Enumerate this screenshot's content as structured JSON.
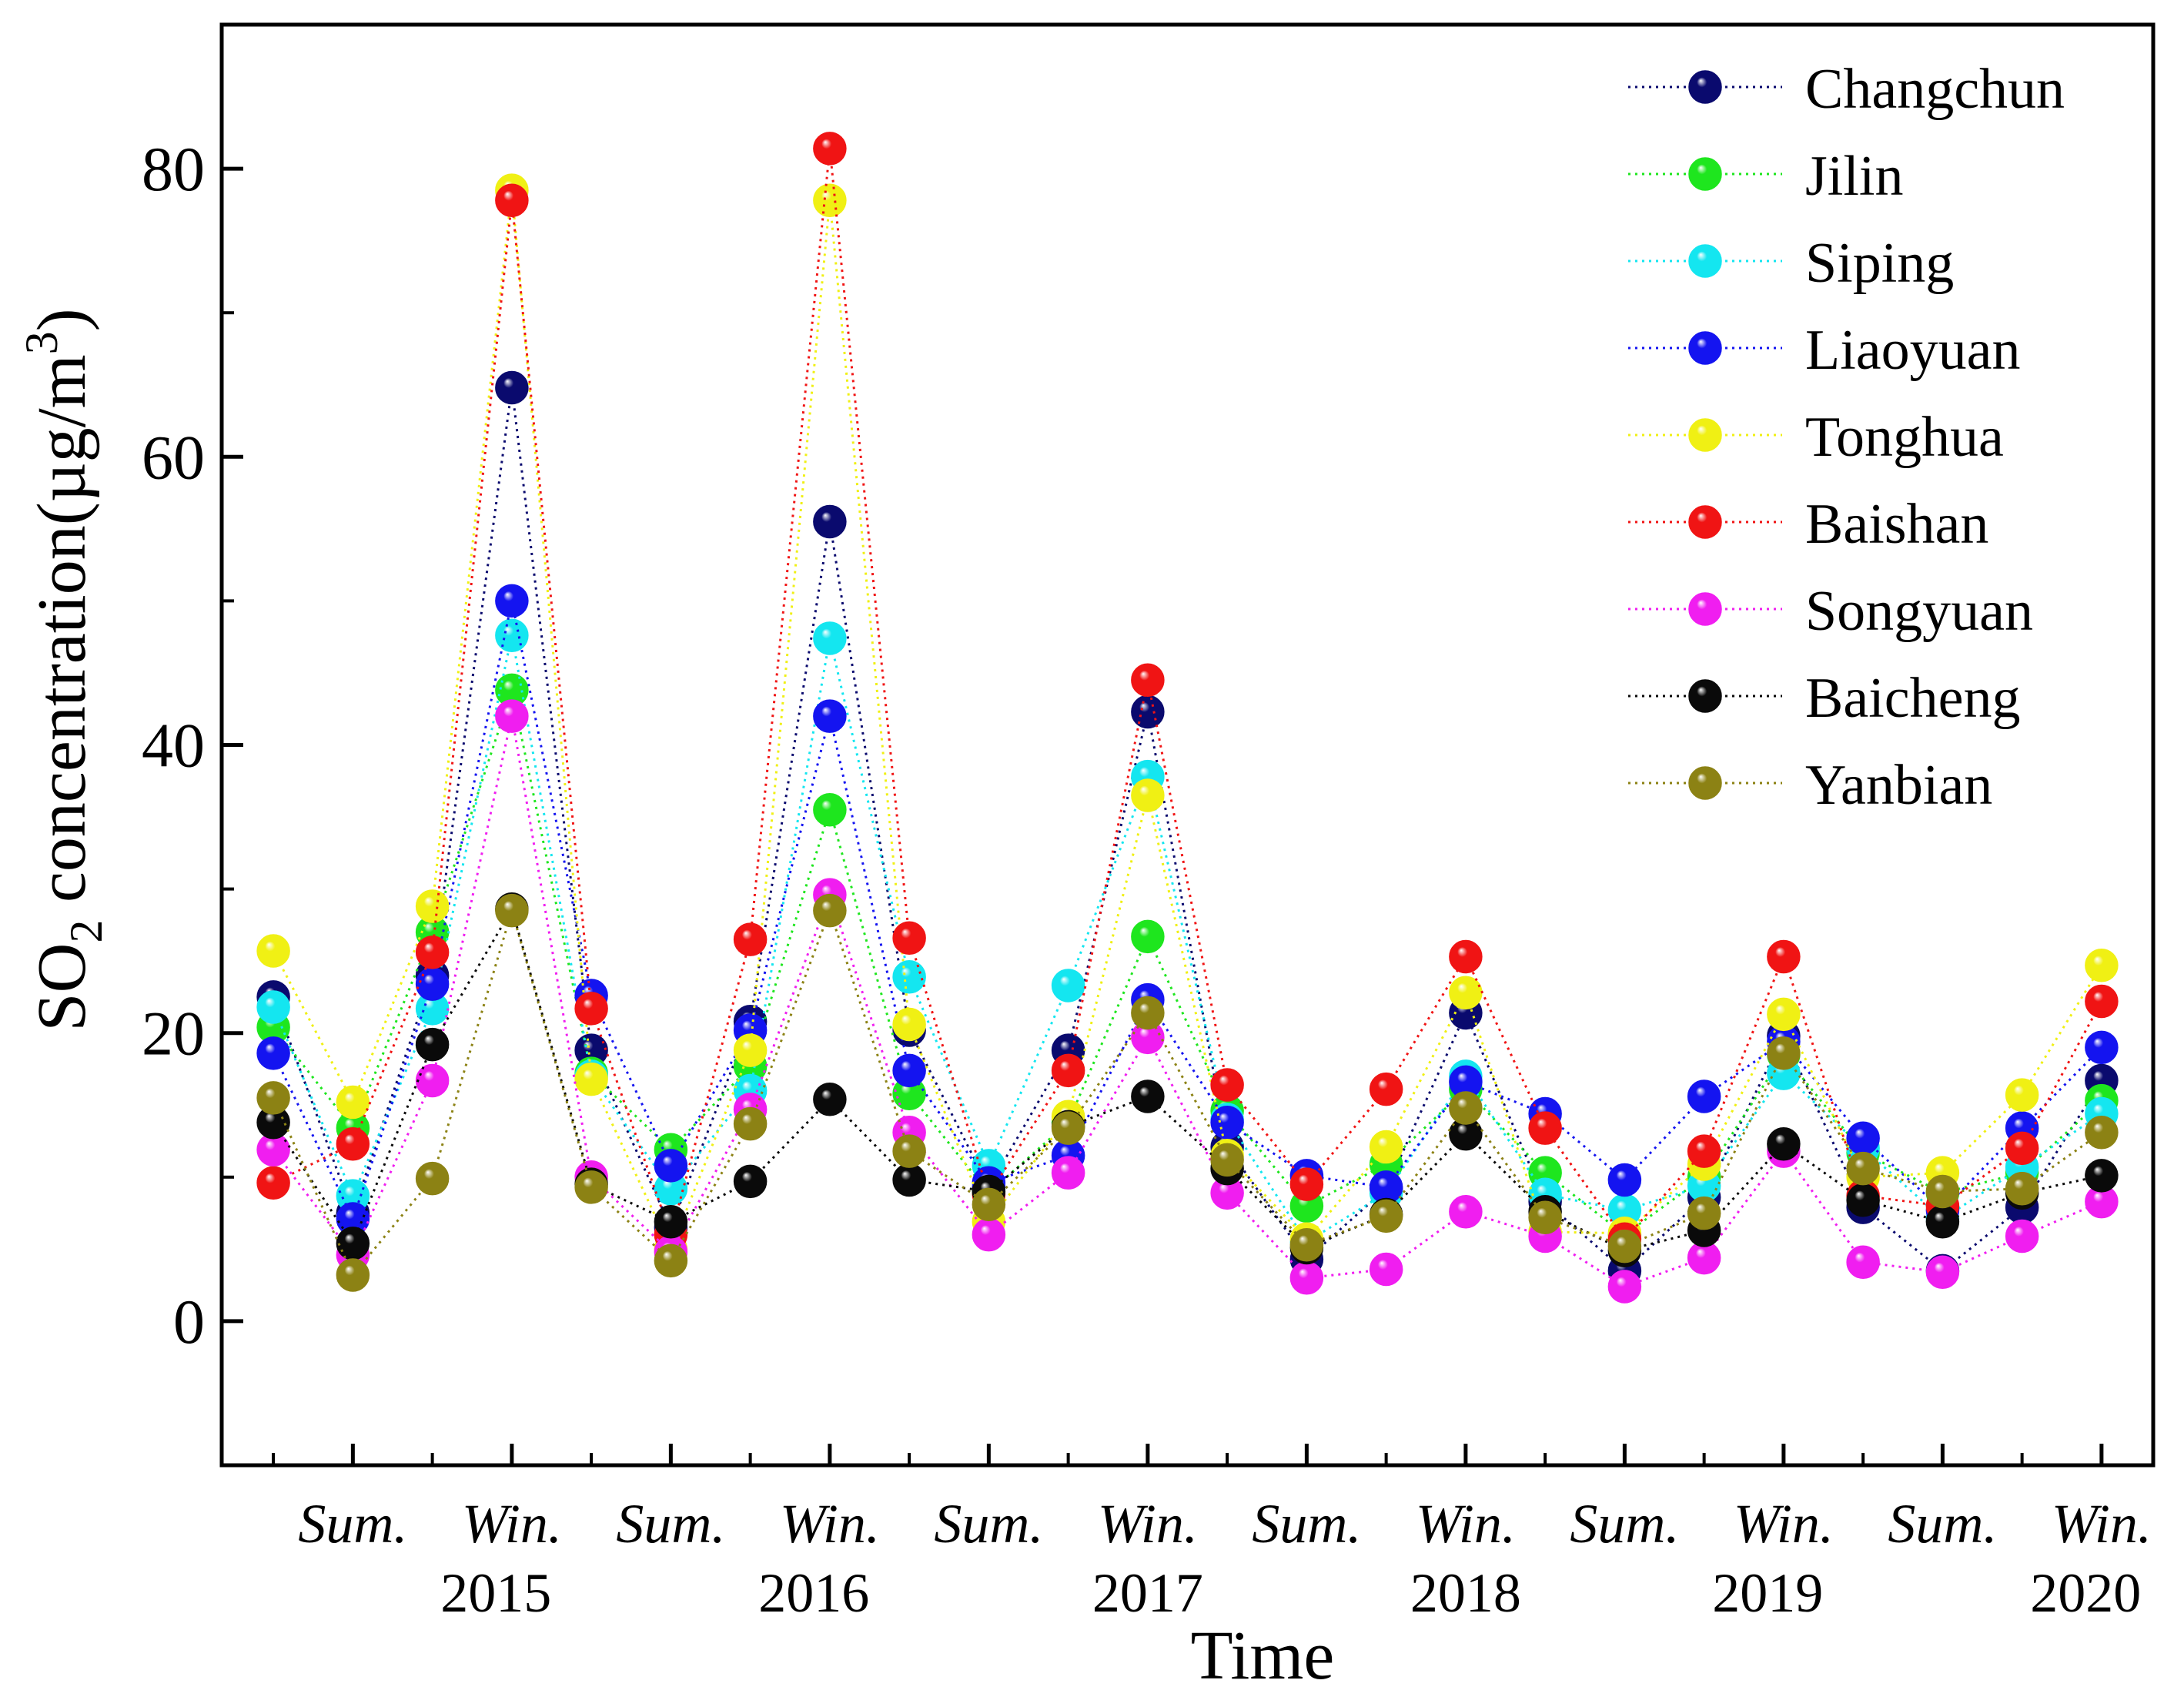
{
  "chart_data": {
    "type": "line",
    "title": "",
    "xlabel": "Time",
    "ylabel_parts": [
      "SO",
      "2",
      " concentration(µg/m",
      "3",
      ")"
    ],
    "ylim": [
      -10,
      90
    ],
    "yticks": [
      0,
      20,
      40,
      60,
      80
    ],
    "grid": false,
    "legend_position": "top-right",
    "x": [
      1,
      2,
      3,
      4,
      5,
      6,
      7,
      8,
      9,
      10,
      11,
      12,
      13,
      14,
      15,
      16,
      17,
      18,
      19,
      20,
      21,
      22,
      23,
      24
    ],
    "xlim": [
      0.35,
      24.65
    ],
    "season_labels": [
      {
        "x": 2,
        "text": "Sum."
      },
      {
        "x": 4,
        "text": "Win."
      },
      {
        "x": 6,
        "text": "Sum."
      },
      {
        "x": 8,
        "text": "Win."
      },
      {
        "x": 10,
        "text": "Sum."
      },
      {
        "x": 12,
        "text": "Win."
      },
      {
        "x": 14,
        "text": "Sum."
      },
      {
        "x": 16,
        "text": "Win."
      },
      {
        "x": 18,
        "text": "Sum."
      },
      {
        "x": 20,
        "text": "Win."
      },
      {
        "x": 22,
        "text": "Sum."
      },
      {
        "x": 24,
        "text": "Win."
      }
    ],
    "year_labels": [
      {
        "x": 3.8,
        "text": "2015"
      },
      {
        "x": 7.8,
        "text": "2016"
      },
      {
        "x": 12,
        "text": "2017"
      },
      {
        "x": 16,
        "text": "2018"
      },
      {
        "x": 19.8,
        "text": "2019"
      },
      {
        "x": 23.8,
        "text": "2020"
      }
    ],
    "series": [
      {
        "name": "Changchun",
        "color": "#0a0a6e",
        "values": [
          22.5,
          7.5,
          24.0,
          64.8,
          18.8,
          6.5,
          20.8,
          55.5,
          20.2,
          9.3,
          18.8,
          42.3,
          12.1,
          4.3,
          9.2,
          21.4,
          8.3,
          3.5,
          8.6,
          19.8,
          7.9,
          3.5,
          7.9,
          16.7
        ]
      },
      {
        "name": "Jilin",
        "color": "#1ee61e",
        "values": [
          20.4,
          13.4,
          27.0,
          43.8,
          17.2,
          11.9,
          17.7,
          35.5,
          15.8,
          8.9,
          13.8,
          26.7,
          14.6,
          8.0,
          10.9,
          16.1,
          10.3,
          6.0,
          10.0,
          18.5,
          11.7,
          8.9,
          10.3,
          15.3
        ]
      },
      {
        "name": "Siping",
        "color": "#14e6f0",
        "values": [
          21.8,
          8.7,
          21.7,
          47.6,
          17.0,
          9.2,
          16.0,
          47.4,
          23.9,
          10.8,
          23.3,
          37.8,
          14.0,
          5.5,
          8.9,
          17.0,
          8.8,
          7.7,
          9.4,
          17.2,
          12.0,
          7.1,
          10.7,
          14.4
        ]
      },
      {
        "name": "Liaoyuan",
        "color": "#1414f0",
        "values": [
          18.6,
          7.1,
          23.4,
          50.0,
          22.6,
          10.8,
          20.2,
          42.0,
          17.4,
          9.6,
          11.5,
          22.3,
          13.8,
          10.1,
          9.3,
          16.6,
          14.4,
          9.8,
          15.6,
          19.4,
          12.7,
          7.7,
          13.4,
          19.0
        ]
      },
      {
        "name": "Tonghua",
        "color": "#f0f014",
        "values": [
          25.7,
          15.2,
          28.8,
          78.5,
          16.8,
          5.0,
          18.8,
          77.8,
          20.6,
          6.9,
          14.2,
          36.5,
          11.5,
          5.7,
          12.1,
          22.8,
          6.2,
          6.1,
          10.9,
          21.3,
          10.0,
          10.3,
          15.7,
          24.7
        ]
      },
      {
        "name": "Baishan",
        "color": "#f01414",
        "values": [
          9.6,
          12.3,
          25.6,
          77.8,
          21.7,
          6.0,
          26.5,
          81.4,
          26.6,
          8.8,
          17.4,
          44.5,
          16.4,
          9.5,
          16.1,
          25.3,
          13.4,
          5.7,
          11.8,
          25.3,
          8.7,
          8.0,
          12.0,
          22.2
        ]
      },
      {
        "name": "Songyuan",
        "color": "#f01ef0",
        "values": [
          11.9,
          4.6,
          16.7,
          42.0,
          10.0,
          4.8,
          14.7,
          29.6,
          13.1,
          6.0,
          10.3,
          19.7,
          8.9,
          3.0,
          3.6,
          7.6,
          5.9,
          2.4,
          4.4,
          11.8,
          4.1,
          3.4,
          5.9,
          8.3
        ]
      },
      {
        "name": "Baicheng",
        "color": "#0a0a0a",
        "values": [
          13.8,
          5.4,
          19.2,
          28.6,
          9.5,
          6.9,
          9.7,
          15.4,
          9.8,
          9.0,
          13.5,
          15.6,
          10.6,
          5.1,
          7.4,
          13.0,
          7.6,
          4.9,
          6.3,
          12.3,
          8.4,
          6.9,
          8.9,
          10.1
        ]
      },
      {
        "name": "Yanbian",
        "color": "#8c8214",
        "values": [
          15.5,
          3.2,
          9.9,
          28.5,
          9.3,
          4.2,
          13.7,
          28.5,
          11.8,
          8.1,
          13.4,
          21.4,
          11.2,
          5.3,
          7.3,
          14.8,
          7.2,
          5.2,
          7.5,
          18.6,
          10.6,
          9.0,
          9.2,
          13.1
        ]
      }
    ]
  }
}
